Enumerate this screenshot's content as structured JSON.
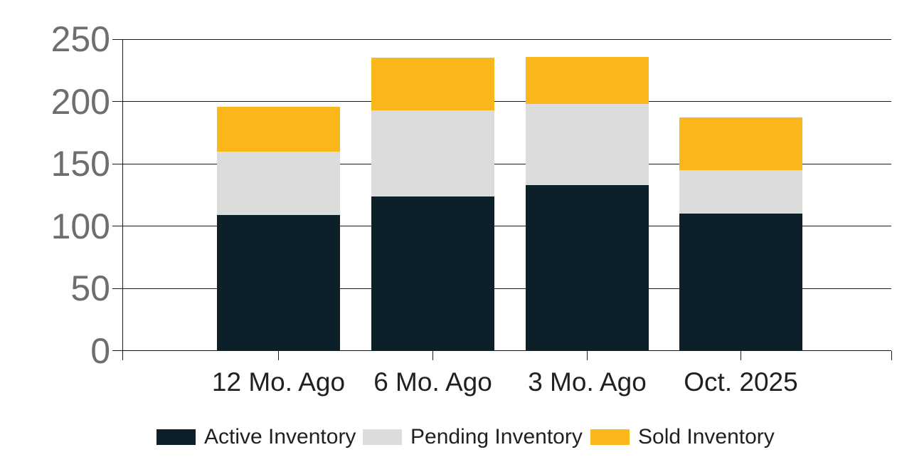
{
  "chart_data": {
    "type": "bar",
    "stacked": true,
    "title": "",
    "xlabel": "",
    "ylabel": "",
    "categories": [
      "12 Mo. Ago",
      "6 Mo. Ago",
      "3 Mo. Ago",
      "Oct. 2025"
    ],
    "series": [
      {
        "name": "Active Inventory",
        "color": "#0D2029",
        "values": [
          109,
          124,
          133,
          110
        ]
      },
      {
        "name": "Pending Inventory",
        "color": "#DCDCDD",
        "values": [
          51,
          69,
          65,
          35
        ]
      },
      {
        "name": "Sold Inventory",
        "color": "#FAB71B",
        "values": [
          36,
          42,
          38,
          42
        ]
      }
    ],
    "stack_totals": [
      196,
      235,
      236,
      187
    ],
    "ylim": [
      0,
      250
    ],
    "yticks": [
      0,
      50,
      100,
      150,
      200,
      250
    ],
    "grid": true,
    "legend_position": "bottom"
  },
  "colors": {
    "background": "#FFFFFF",
    "axis_line": "#1A1A1A",
    "gridline": "#1A1A1A",
    "y_tick_label": "#6D6E71",
    "x_tick_label": "#231F20",
    "legend_text": "#231F20"
  }
}
